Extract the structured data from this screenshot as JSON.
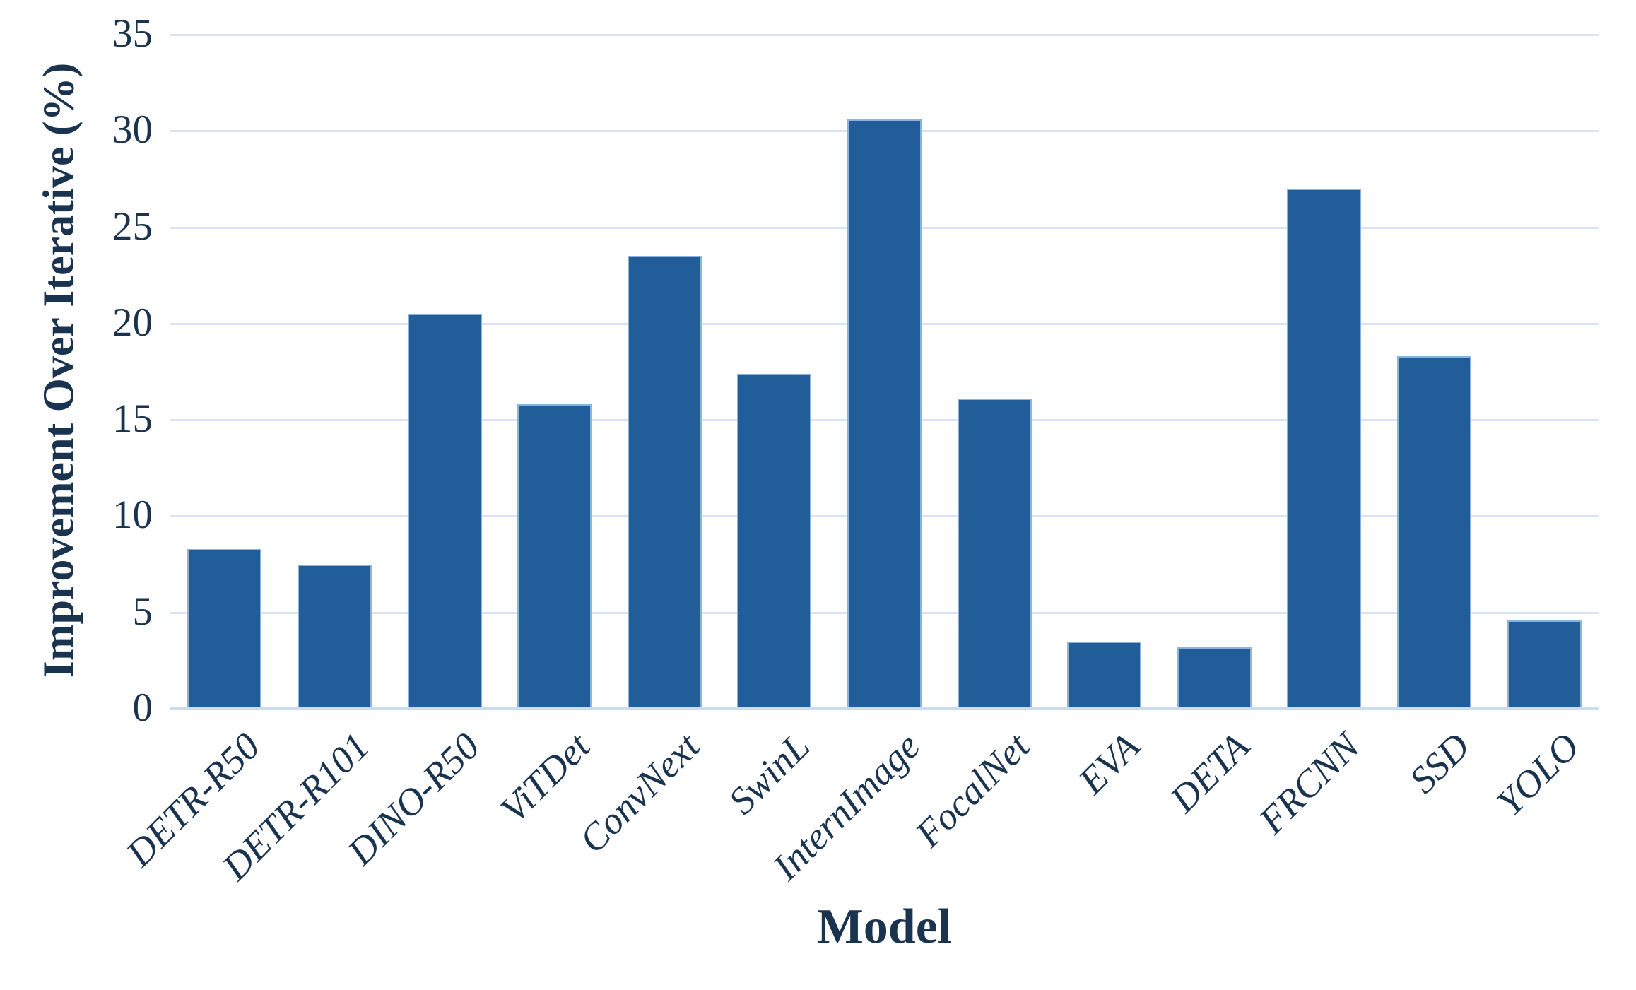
{
  "chart_data": {
    "type": "bar",
    "title": "",
    "xlabel": "Model",
    "ylabel": "Improvement Over Iterative (%)",
    "categories": [
      "DETR-R50",
      "DETR-R101",
      "DINO-R50",
      "ViTDet",
      "ConvNext",
      "SwinL",
      "InternImage",
      "FocalNet",
      "EVA",
      "DETA",
      "FRCNN",
      "SSD",
      "YOLO"
    ],
    "values": [
      8.3,
      7.5,
      20.5,
      15.8,
      23.5,
      17.4,
      30.6,
      16.1,
      3.5,
      3.2,
      27.0,
      18.3,
      4.6
    ],
    "ylim": [
      0,
      35
    ],
    "yticks": [
      0,
      5,
      10,
      15,
      20,
      25,
      30,
      35
    ],
    "grid": "horizontal",
    "legend": "none",
    "colors": {
      "bar_fill": "#215e99",
      "bar_edge": "#8db3da",
      "gridline": "#d8e4f5",
      "axis_line": "#c9dcf2",
      "text": "#1a334f"
    }
  }
}
